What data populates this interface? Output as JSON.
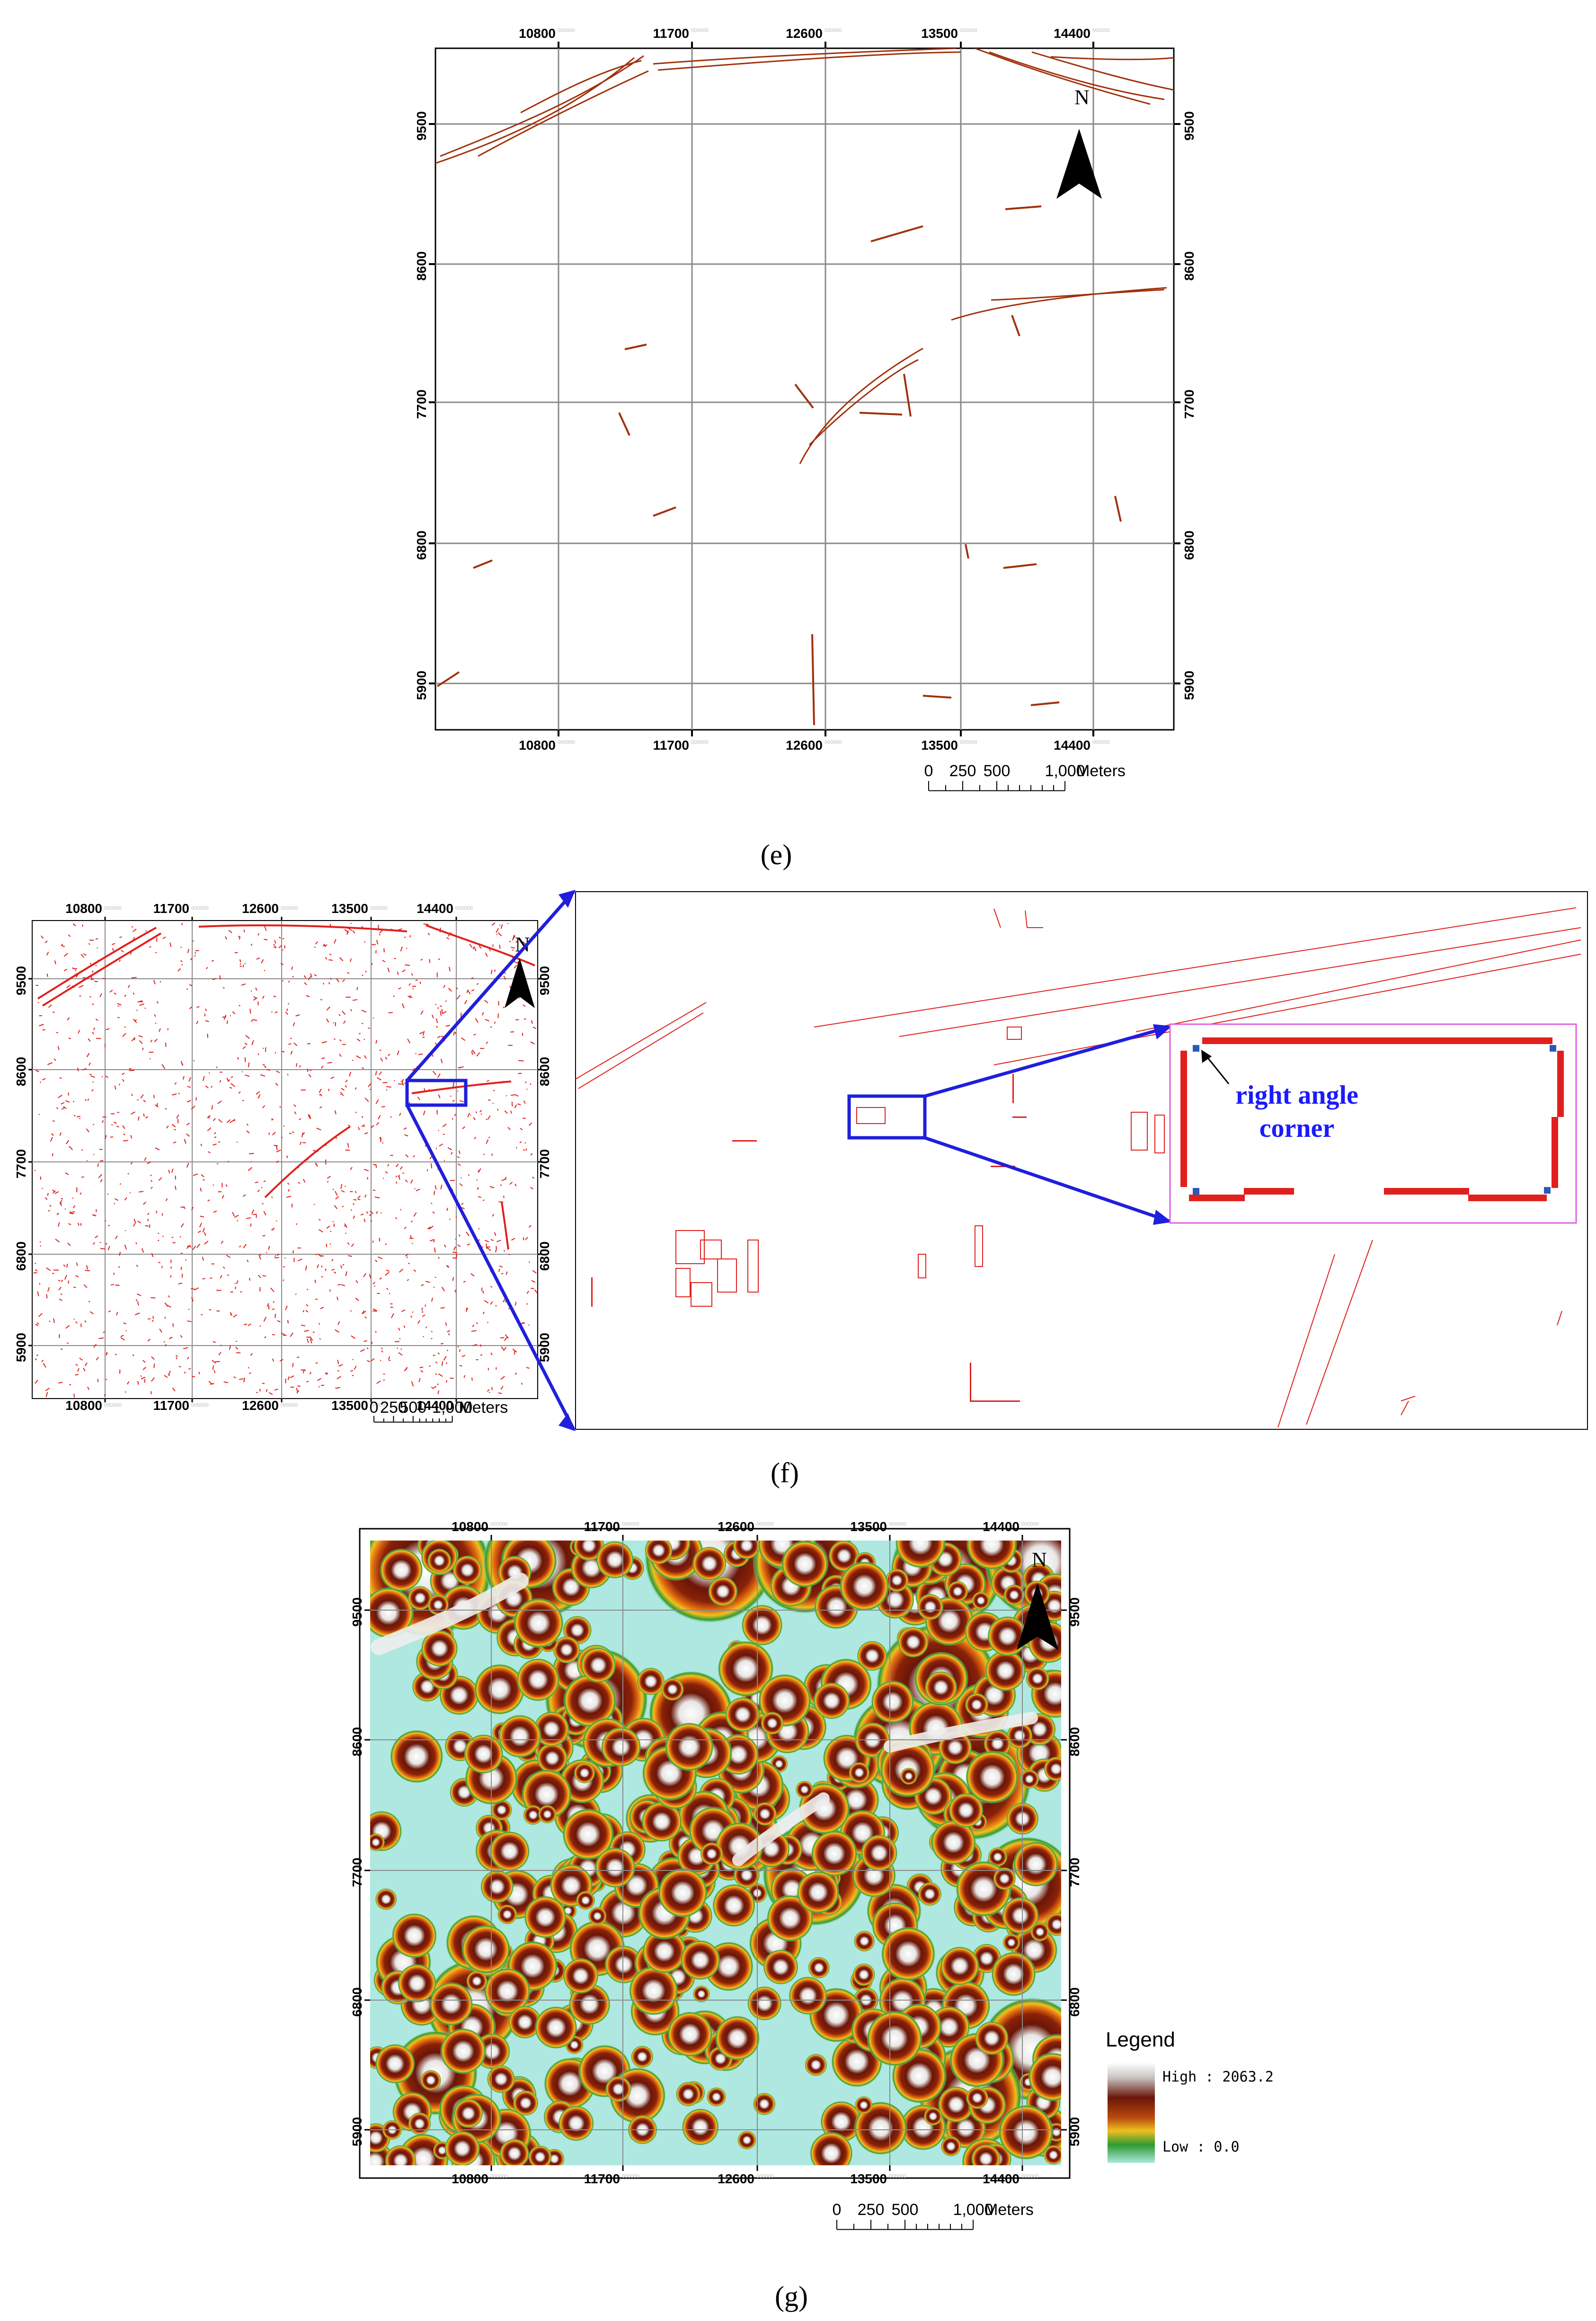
{
  "figure": {
    "captions": {
      "e": "(e)",
      "f": "(f)",
      "g": "(g)"
    },
    "x_ticks": [
      "10800",
      "11700",
      "12600",
      "13500",
      "14400"
    ],
    "y_ticks": [
      "9500",
      "8600",
      "7700",
      "6800",
      "5900"
    ],
    "tick_suffix": "000000",
    "north_label": "N",
    "scale_bar": {
      "labels": [
        "0",
        "250",
        "500",
        "1,000"
      ],
      "unit": "Meters"
    },
    "annotation": {
      "line1": "right angle",
      "line2": "corner"
    },
    "legend": {
      "title": "Legend",
      "high": "High : 2063.2",
      "low": "Low : 0.0"
    },
    "colors": {
      "lineament": "#a0300a",
      "edges": "#e0201c",
      "zoom_frame": "#1f1fdc",
      "inset_frame": "#e060e0",
      "heat_low": "#aee8e0"
    }
  }
}
